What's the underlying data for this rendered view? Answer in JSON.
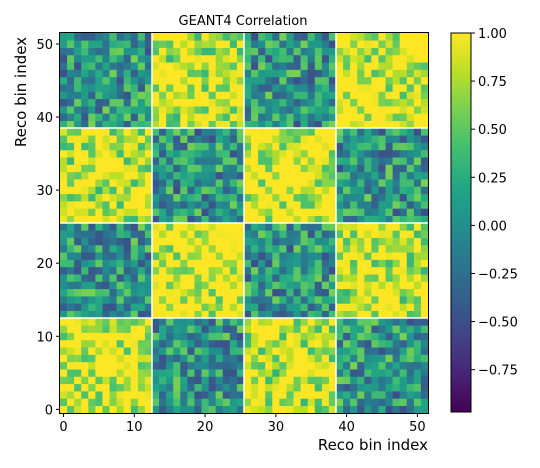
{
  "chart_data": {
    "type": "heatmap",
    "title": "GEANT4 Correlation",
    "xlabel": "Reco bin index",
    "ylabel": "Reco bin index",
    "n_bins": 52,
    "xlim": [
      0,
      51
    ],
    "ylim": [
      0,
      51
    ],
    "x_ticks": [
      0,
      10,
      20,
      30,
      40,
      50
    ],
    "y_ticks": [
      0,
      10,
      20,
      30,
      40,
      50
    ],
    "colorbar": {
      "colormap": "viridis",
      "range": [
        -0.97,
        1.0
      ],
      "ticks": [
        "1.00",
        "0.75",
        "0.50",
        "0.25",
        "0.00",
        "−0.25",
        "−0.50",
        "−0.75"
      ],
      "tick_values": [
        1.0,
        0.75,
        0.5,
        0.25,
        0.0,
        -0.25,
        -0.5,
        -0.75
      ]
    },
    "block_boundaries": [
      13,
      26,
      39
    ],
    "diagonal": 1.0,
    "block_correlation_pattern": {
      "description_values": [
        [
          0.95,
          0.05,
          0.85,
          0.05
        ],
        [
          0.05,
          0.95,
          0.05,
          0.85
        ],
        [
          0.85,
          0.05,
          0.95,
          0.05
        ],
        [
          0.05,
          0.85,
          0.05,
          0.95
        ]
      ]
    }
  }
}
